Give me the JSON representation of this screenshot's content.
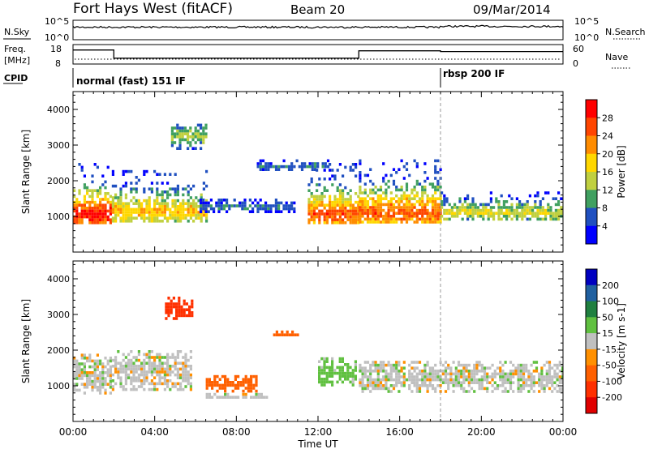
{
  "header": {
    "station": "Fort Hays West (fitACF)",
    "beam": "Beam 20",
    "date": "09/Mar/2014"
  },
  "status_panels": {
    "nsky_label": "N.Sky",
    "nsky_ticks": [
      "10^5",
      "10^0"
    ],
    "nsearch_label": "N.Search",
    "nsearch_ticks": [
      "10^5",
      "10^0"
    ],
    "freq_label": "Freq.",
    "freq_unit": "[MHz]",
    "freq_ticks": [
      "18",
      "8"
    ],
    "nave_label": "Nave",
    "nave_ticks": [
      "60",
      "0"
    ],
    "cpid_label": "CPID",
    "cpid_segments": [
      {
        "label": "normal (fast) 151 IF",
        "start_hour": 0
      },
      {
        "label": "rbsp 200 IF",
        "start_hour": 18
      }
    ],
    "freq_steps": [
      {
        "from_hour": 0,
        "to_hour": 2,
        "mhz": 15.2
      },
      {
        "from_hour": 2,
        "to_hour": 14,
        "mhz": 11.0
      },
      {
        "from_hour": 14,
        "to_hour": 18,
        "mhz": 14.8
      },
      {
        "from_hour": 18,
        "to_hour": 24,
        "mhz": 14.4
      }
    ]
  },
  "chart_data": [
    {
      "type": "heatmap",
      "panel": "power",
      "ylabel": "Slant Range [km]",
      "xlabel": "Time UT",
      "xlim_hours": [
        0,
        24
      ],
      "ylim_km": [
        0,
        4500
      ],
      "x_ticks": [
        "00:00",
        "04:00",
        "08:00",
        "12:00",
        "16:00",
        "20:00",
        "00:00"
      ],
      "y_ticks": [
        1000,
        2000,
        3000,
        4000
      ],
      "colorbar": {
        "label": "Power [dB]",
        "ticks": [
          28,
          24,
          20,
          16,
          12,
          8,
          4
        ],
        "colors": [
          "#ff0000",
          "#ff4500",
          "#ff8c00",
          "#ffd700",
          "#c0d040",
          "#40a060",
          "#2050c0",
          "#0000ff"
        ]
      },
      "regions": [
        {
          "from_hour": 0.0,
          "to_hour": 1.9,
          "range_km": [
            800,
            2500
          ],
          "peak_km": 1100,
          "peak_db": 28
        },
        {
          "from_hour": 1.9,
          "to_hour": 6.5,
          "range_km": [
            900,
            2300
          ],
          "peak_km": 1200,
          "peak_db": 18
        },
        {
          "from_hour": 4.8,
          "to_hour": 6.5,
          "range_km": [
            2800,
            3600
          ],
          "peak_km": 3300,
          "peak_db": 12
        },
        {
          "from_hour": 6.2,
          "to_hour": 10.8,
          "range_km": [
            1100,
            1500
          ],
          "peak_km": 1300,
          "peak_db": 6
        },
        {
          "from_hour": 9.0,
          "to_hour": 12.5,
          "range_km": [
            2300,
            2600
          ],
          "peak_km": 2450,
          "peak_db": 6
        },
        {
          "from_hour": 11.5,
          "to_hour": 14.0,
          "range_km": [
            800,
            2500
          ],
          "peak_km": 1100,
          "peak_db": 24
        },
        {
          "from_hour": 14.0,
          "to_hour": 18.0,
          "range_km": [
            850,
            2600
          ],
          "peak_km": 1150,
          "peak_db": 24
        },
        {
          "from_hour": 18.0,
          "to_hour": 24.0,
          "range_km": [
            900,
            1700
          ],
          "peak_km": 1150,
          "peak_db": 14
        }
      ]
    },
    {
      "type": "heatmap",
      "panel": "velocity",
      "ylabel": "Slant Range [km]",
      "xlabel": "Time UT",
      "xlim_hours": [
        0,
        24
      ],
      "ylim_km": [
        0,
        4500
      ],
      "x_ticks": [
        "00:00",
        "04:00",
        "08:00",
        "12:00",
        "16:00",
        "20:00",
        "00:00"
      ],
      "y_ticks": [
        1000,
        2000,
        3000,
        4000
      ],
      "colorbar": {
        "label": "Velocity [m s-1]",
        "ticks": [
          200,
          100,
          50,
          15,
          -15,
          -50,
          -100,
          -200
        ],
        "colors": [
          "#0000c0",
          "#2060a0",
          "#208040",
          "#60c040",
          "#c0c0c0",
          "#ff9000",
          "#ff6000",
          "#ff3000",
          "#e00000"
        ]
      },
      "regions": [
        {
          "from_hour": 0.0,
          "to_hour": 1.9,
          "range_km": [
            800,
            1900
          ],
          "velocity": 0
        },
        {
          "from_hour": 1.9,
          "to_hour": 5.8,
          "range_km": [
            900,
            2000
          ],
          "velocity": 0
        },
        {
          "from_hour": 4.5,
          "to_hour": 5.8,
          "range_km": [
            2900,
            3500
          ],
          "velocity": -120
        },
        {
          "from_hour": 6.5,
          "to_hour": 9.0,
          "range_km": [
            850,
            1300
          ],
          "velocity": -70
        },
        {
          "from_hour": 6.5,
          "to_hour": 9.5,
          "range_km": [
            650,
            800
          ],
          "velocity": 0
        },
        {
          "from_hour": 9.8,
          "to_hour": 11.0,
          "range_km": [
            2400,
            2550
          ],
          "velocity": -80
        },
        {
          "from_hour": 12.0,
          "to_hour": 13.8,
          "range_km": [
            1000,
            1800
          ],
          "velocity": 30
        },
        {
          "from_hour": 14.0,
          "to_hour": 24.0,
          "range_km": [
            800,
            1700
          ],
          "velocity": 0
        }
      ]
    }
  ]
}
